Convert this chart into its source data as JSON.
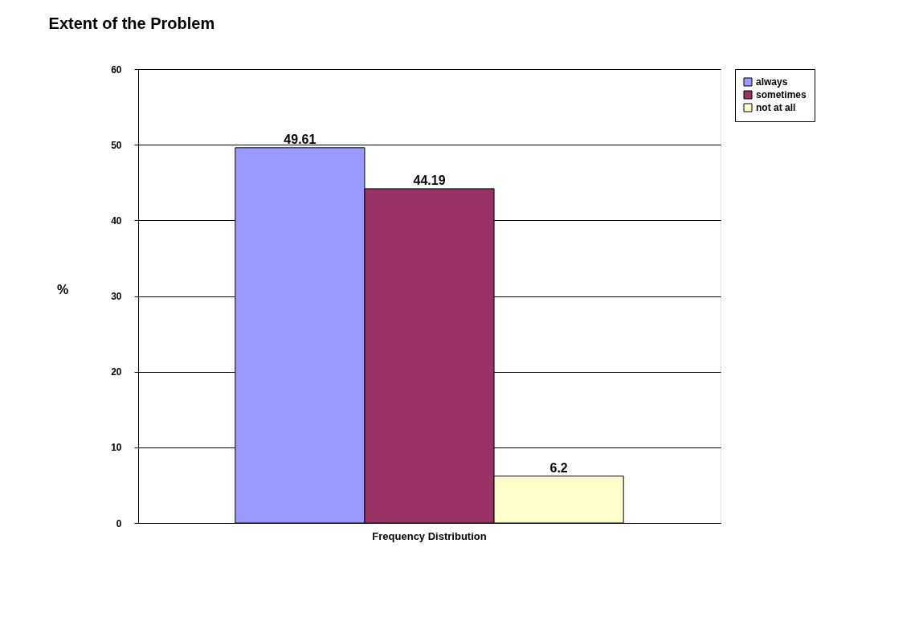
{
  "chart_data": {
    "type": "bar",
    "title": "Extent of the Problem",
    "ylabel": "%",
    "categories": [
      "Frequency Distribution"
    ],
    "series": [
      {
        "name": "always",
        "color": "#9999ff",
        "values": [
          49.61
        ]
      },
      {
        "name": "sometimes",
        "color": "#993366",
        "values": [
          44.19
        ]
      },
      {
        "name": "not at all",
        "color": "#ffffcc",
        "values": [
          6.2
        ]
      }
    ],
    "ylim": [
      0,
      60
    ],
    "yticks": [
      0,
      10,
      20,
      30,
      40,
      50,
      60
    ],
    "grid": "y",
    "legend": "right",
    "data_labels": true
  }
}
